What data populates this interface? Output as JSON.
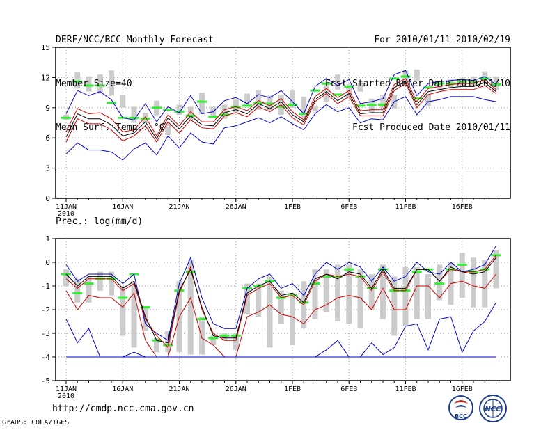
{
  "header": {
    "left": [
      "DERF/NCC/BCC Monthly Forecast",
      "Member Size=40",
      "Mean Surf. Temp.: °C"
    ],
    "right": [
      "For 2010/01/11-2010/02/19",
      "Fcst Started Refer Date 2010/01/10",
      "Fcst Produced Date 2010/01/11"
    ]
  },
  "footer": {
    "url": "http://cmdp.ncc.cma.gov.cn",
    "credit": "GrADS: COLA/IGES",
    "logo_left_text": "BCC",
    "logo_right_text": "NCC"
  },
  "colors": {
    "envelope": "#0000cc",
    "spread": "#cc0000",
    "mean": "#000000",
    "box": "#cccccc",
    "median": "#33ee33",
    "grid": "#999999"
  },
  "chart_data": [
    {
      "type": "line",
      "title": "Mean Surf. Temp.: °C",
      "ylim": [
        0,
        15
      ],
      "yticks": [
        0,
        3,
        6,
        9,
        12,
        15
      ],
      "grid": "dotted",
      "xticks": [
        {
          "day": 0,
          "label": "11JAN",
          "sublabel": "2010"
        },
        {
          "day": 5,
          "label": "16JAN"
        },
        {
          "day": 10,
          "label": "21JAN"
        },
        {
          "day": 15,
          "label": "26JAN"
        },
        {
          "day": 20,
          "label": "1FEB"
        },
        {
          "day": 25,
          "label": "6FEB"
        },
        {
          "day": 30,
          "label": "11FEB"
        },
        {
          "day": 35,
          "label": "16FEB"
        }
      ],
      "series": [
        {
          "name": "max",
          "color": "blue",
          "values": [
            8.4,
            10.7,
            10.2,
            10.6,
            9.8,
            8.0,
            7.8,
            9.4,
            7.6,
            9.1,
            8.5,
            10.2,
            8.4,
            8.6,
            9.7,
            10.0,
            9.4,
            10.3,
            10.0,
            10.7,
            9.6,
            8.4,
            11.1,
            11.9,
            11.2,
            11.8,
            9.4,
            9.6,
            9.9,
            12.3,
            12.7,
            10.2,
            11.4,
            11.6,
            11.7,
            11.8,
            11.7,
            12.1,
            11.3
          ]
        },
        {
          "name": "upper",
          "color": "red",
          "values": [
            6.6,
            8.9,
            8.4,
            8.5,
            7.9,
            6.6,
            6.8,
            8.1,
            6.2,
            8.3,
            7.2,
            8.6,
            7.6,
            7.6,
            8.8,
            9.1,
            8.7,
            9.7,
            9.2,
            9.9,
            8.6,
            7.8,
            10.1,
            10.9,
            10.0,
            10.7,
            8.7,
            8.8,
            8.8,
            11.3,
            11.9,
            9.6,
            10.9,
            11.1,
            11.3,
            11.4,
            11.4,
            11.8,
            10.8
          ]
        },
        {
          "name": "mean",
          "color": "black",
          "values": [
            6.1,
            8.4,
            7.9,
            7.9,
            7.3,
            6.2,
            6.5,
            7.6,
            5.9,
            8.0,
            6.9,
            8.2,
            7.3,
            7.2,
            8.5,
            8.8,
            8.4,
            9.4,
            8.9,
            9.6,
            8.3,
            7.6,
            9.8,
            10.6,
            9.7,
            10.4,
            8.4,
            8.5,
            8.5,
            11.0,
            11.6,
            9.3,
            10.6,
            10.8,
            11.0,
            11.1,
            11.1,
            11.5,
            10.6
          ]
        },
        {
          "name": "lower",
          "color": "red",
          "values": [
            5.6,
            7.9,
            7.4,
            7.4,
            6.8,
            5.7,
            6.2,
            7.2,
            5.6,
            7.6,
            6.5,
            7.8,
            7.0,
            6.9,
            8.2,
            8.5,
            8.1,
            9.1,
            8.6,
            9.3,
            8.0,
            7.3,
            9.6,
            10.4,
            9.4,
            10.1,
            8.2,
            8.2,
            8.2,
            10.7,
            11.4,
            9.0,
            10.3,
            10.6,
            10.8,
            10.8,
            10.8,
            11.2,
            10.4
          ]
        },
        {
          "name": "min",
          "color": "blue",
          "values": [
            4.4,
            5.5,
            4.8,
            4.8,
            4.6,
            3.8,
            4.9,
            5.5,
            4.3,
            6.2,
            5.0,
            6.5,
            5.6,
            5.4,
            7.0,
            7.2,
            7.6,
            8.0,
            7.5,
            8.1,
            7.4,
            6.8,
            8.4,
            9.3,
            8.6,
            9.0,
            7.5,
            7.9,
            7.8,
            9.6,
            10.1,
            8.3,
            9.6,
            9.8,
            10.1,
            10.1,
            10.1,
            9.8,
            9.6
          ]
        }
      ],
      "boxes": [
        [
          7.8,
          8.3
        ],
        [
          10.9,
          12.5
        ],
        [
          10.6,
          12.1
        ],
        [
          10.4,
          12.3
        ],
        [
          10.2,
          12.7
        ],
        [
          9.0,
          10.3
        ],
        [
          7.5,
          9.1
        ],
        [
          7.5,
          8.5
        ],
        [
          8.2,
          9.7
        ],
        [
          6.3,
          7.4
        ],
        [
          8.3,
          9.3
        ],
        [
          7.8,
          9.1
        ],
        [
          8.4,
          10.5
        ],
        [
          8.0,
          9.1
        ],
        [
          7.9,
          9.3
        ],
        [
          8.5,
          9.8
        ],
        [
          9.2,
          10.4
        ],
        [
          8.8,
          10.7
        ],
        [
          8.7,
          10.2
        ],
        [
          8.3,
          10.3
        ],
        [
          9.0,
          10.7
        ],
        [
          8.0,
          10.1
        ],
        [
          8.6,
          9.2
        ],
        [
          9.6,
          11.3
        ],
        [
          10.8,
          12.3
        ],
        [
          9.9,
          11.3
        ],
        [
          10.6,
          11.5
        ],
        [
          8.5,
          9.9
        ],
        [
          8.9,
          10.3
        ],
        [
          8.9,
          10.3
        ],
        [
          11.1,
          12.7
        ],
        [
          11.7,
          12.8
        ],
        [
          9.2,
          10.3
        ],
        [
          10.7,
          11.7
        ],
        [
          10.9,
          11.9
        ],
        [
          11.1,
          12.0
        ],
        [
          11.1,
          12.1
        ],
        [
          11.5,
          12.6
        ],
        [
          10.7,
          12.1
        ]
      ],
      "medians": [
        8.0,
        11.6,
        11.2,
        11.2,
        9.5,
        8.0,
        8.0,
        7.9,
        9.0,
        8.8,
        8.6,
        8.2,
        9.6,
        8.1,
        8.3,
        9.1,
        9.2,
        9.5,
        9.4,
        9.1,
        9.3,
        8.4,
        10.7,
        11.4,
        10.3,
        11.1,
        9.2,
        9.3,
        9.3,
        11.9,
        12.1,
        9.9,
        11.0,
        11.4,
        11.4,
        11.6,
        11.5,
        11.9,
        11.3
      ]
    },
    {
      "type": "line",
      "title": "Prec.: log(mm/d)",
      "ylim": [
        -5,
        1
      ],
      "yticks": [
        -5,
        -4,
        -3,
        -2,
        -1,
        0,
        1
      ],
      "grid": "dotted",
      "xticks": [
        {
          "day": 0,
          "label": "11JAN",
          "sublabel": "2010"
        },
        {
          "day": 5,
          "label": "16JAN"
        },
        {
          "day": 10,
          "label": "21JAN"
        },
        {
          "day": 15,
          "label": "26JAN"
        },
        {
          "day": 20,
          "label": "1FEB"
        },
        {
          "day": 25,
          "label": "6FEB"
        },
        {
          "day": 30,
          "label": "11FEB"
        },
        {
          "day": 35,
          "label": "16FEB"
        }
      ],
      "series": [
        {
          "name": "max",
          "color": "blue",
          "values": [
            -0.1,
            -0.8,
            -0.5,
            -0.5,
            -0.5,
            -0.9,
            -0.5,
            -2.6,
            -3.0,
            -3.3,
            -0.9,
            0.2,
            -1.5,
            -2.6,
            -2.8,
            -2.8,
            -1.1,
            -0.7,
            -0.5,
            -1.1,
            -0.9,
            -1.4,
            -0.5,
            0.0,
            -0.3,
            0.0,
            -0.2,
            -0.8,
            -0.2,
            -0.8,
            -0.6,
            0.0,
            -0.4,
            -0.5,
            0.0,
            -0.4,
            -0.3,
            -0.1,
            0.7
          ]
        },
        {
          "name": "upper",
          "color": "red",
          "values": [
            -0.7,
            -1.1,
            -0.7,
            -0.7,
            -0.7,
            -1.2,
            -0.9,
            -2.4,
            -3.1,
            -3.6,
            -1.3,
            -0.2,
            -2.0,
            -3.0,
            -3.3,
            -3.3,
            -1.4,
            -1.1,
            -0.9,
            -1.5,
            -1.4,
            -1.8,
            -0.8,
            -0.5,
            -0.6,
            -0.5,
            -0.6,
            -1.2,
            -0.4,
            -1.2,
            -1.2,
            -0.3,
            -0.3,
            -0.8,
            -0.3,
            -0.4,
            -0.4,
            -0.3,
            0.3
          ]
        },
        {
          "name": "mean",
          "color": "black",
          "values": [
            -0.5,
            -1.0,
            -0.6,
            -0.6,
            -0.6,
            -1.1,
            -0.8,
            -2.3,
            -3.3,
            -3.4,
            -1.2,
            -0.3,
            -1.9,
            -3.1,
            -3.2,
            -3.2,
            -1.3,
            -1.0,
            -0.8,
            -1.4,
            -1.3,
            -1.7,
            -0.7,
            -0.5,
            -0.7,
            -0.4,
            -0.5,
            -1.1,
            -0.3,
            -1.1,
            -1.1,
            -0.3,
            -0.3,
            -0.8,
            -0.2,
            -0.4,
            -0.5,
            -0.4,
            0.2
          ]
        },
        {
          "name": "lower",
          "color": "red",
          "values": [
            -1.2,
            -2.0,
            -1.4,
            -1.5,
            -1.5,
            -1.9,
            -1.3,
            -3.3,
            -4.0,
            -4.0,
            -2.3,
            -1.5,
            -3.2,
            -3.5,
            -4.0,
            -4.0,
            -2.3,
            -2.1,
            -1.8,
            -2.2,
            -2.3,
            -2.6,
            -2.0,
            -1.8,
            -1.5,
            -1.4,
            -1.5,
            -2.0,
            -1.1,
            -2.0,
            -2.0,
            -1.0,
            -1.0,
            -1.5,
            -0.9,
            -0.8,
            -1.0,
            -1.1,
            -0.5
          ]
        },
        {
          "name": "min",
          "color": "blue",
          "values": [
            -2.4,
            -3.4,
            -2.8,
            -4.0,
            -4.0,
            -4.0,
            -3.8,
            -4.0,
            -4.0,
            -4.0,
            -4.0,
            -4.0,
            -4.0,
            -4.0,
            -4.0,
            -4.0,
            -4.0,
            -4.0,
            -4.0,
            -4.0,
            -4.0,
            -4.0,
            -4.0,
            -3.7,
            -3.3,
            -4.0,
            -4.0,
            -3.4,
            -3.9,
            -3.6,
            -2.7,
            -2.6,
            -3.7,
            -2.4,
            -2.3,
            -3.8,
            -2.9,
            -2.5,
            -1.7
          ]
        },
        {
          "name": "zero_reference",
          "color": "blue",
          "values": [
            -4.0,
            -4.0,
            -4.0,
            -4.0,
            -4.0,
            -4.0,
            -4.0,
            -4.0,
            -4.0,
            -4.0,
            -4.0,
            -4.0,
            -4.0,
            -4.0,
            -4.0,
            -4.0,
            -4.0,
            -4.0,
            -4.0,
            -4.0,
            -4.0,
            -4.0,
            -4.0,
            -4.0,
            -4.0,
            -4.0,
            -4.0,
            -4.0,
            -4.0,
            -4.0,
            -4.0,
            -4.0,
            -4.0,
            -4.0,
            -4.0,
            -4.0,
            -4.0,
            -4.0,
            -4.0
          ]
        }
      ],
      "boxes": [
        [
          -1.0,
          -0.3
        ],
        [
          -1.7,
          -0.7
        ],
        [
          -1.7,
          -0.6
        ],
        [
          -1.2,
          -0.4
        ],
        [
          -1.4,
          -0.4
        ],
        [
          -3.1,
          -1.0
        ],
        [
          -3.6,
          -0.8
        ],
        [
          -2.9,
          -1.9
        ],
        [
          -3.8,
          -3.2
        ],
        [
          -3.8,
          -2.9
        ],
        [
          -3.8,
          -0.8
        ],
        [
          -3.9,
          0.1
        ],
        [
          -3.9,
          -2.3
        ],
        [
          -3.5,
          -3.1
        ],
        [
          -3.3,
          -3.0
        ],
        [
          -3.7,
          -3.0
        ],
        [
          -2.2,
          -0.9
        ],
        [
          -2.3,
          -0.9
        ],
        [
          -3.6,
          -0.6
        ],
        [
          -2.6,
          -1.2
        ],
        [
          -3.5,
          -1.3
        ],
        [
          -2.8,
          -0.8
        ],
        [
          -2.4,
          -0.3
        ],
        [
          -2.1,
          -0.3
        ],
        [
          -2.5,
          -0.1
        ],
        [
          -2.6,
          -0.1
        ],
        [
          -2.8,
          -0.3
        ],
        [
          -2.0,
          -0.5
        ],
        [
          -2.4,
          -0.1
        ],
        [
          -3.1,
          -0.6
        ],
        [
          -2.7,
          -0.2
        ],
        [
          -2.4,
          -0.2
        ],
        [
          -2.4,
          -0.5
        ],
        [
          -1.6,
          -0.1
        ],
        [
          -1.8,
          0.0
        ],
        [
          -1.5,
          0.4
        ],
        [
          -1.9,
          0.2
        ],
        [
          -1.9,
          0.1
        ],
        [
          -1.1,
          0.5
        ]
      ],
      "medians": [
        -0.5,
        -1.3,
        -0.9,
        -0.7,
        -0.7,
        -1.5,
        -0.5,
        -1.9,
        -3.3,
        -3.5,
        -1.2,
        -0.4,
        -2.4,
        -3.2,
        -3.1,
        -3.1,
        -1.1,
        -1.0,
        -0.8,
        -1.5,
        -1.4,
        -1.7,
        -0.9,
        -0.6,
        -0.6,
        -0.3,
        -0.6,
        -1.1,
        -0.3,
        -1.2,
        -1.2,
        -0.4,
        -0.3,
        -0.9,
        -0.3,
        -0.1,
        -0.4,
        -0.3,
        0.3
      ]
    }
  ]
}
